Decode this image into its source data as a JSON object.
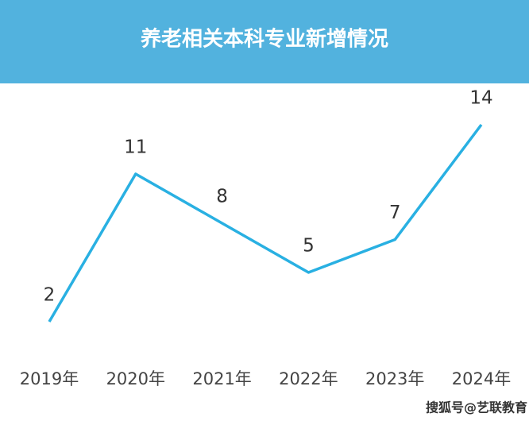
{
  "chart_data": {
    "type": "line",
    "title": "养老相关本科专业新增情况",
    "categories": [
      "2019年",
      "2020年",
      "2021年",
      "2022年",
      "2023年",
      "2024年"
    ],
    "values": [
      2,
      11,
      8,
      5,
      7,
      14
    ],
    "color": "#29b0e2",
    "header_color": "#52b2de",
    "watermark": "搜狐号@艺联教育"
  }
}
